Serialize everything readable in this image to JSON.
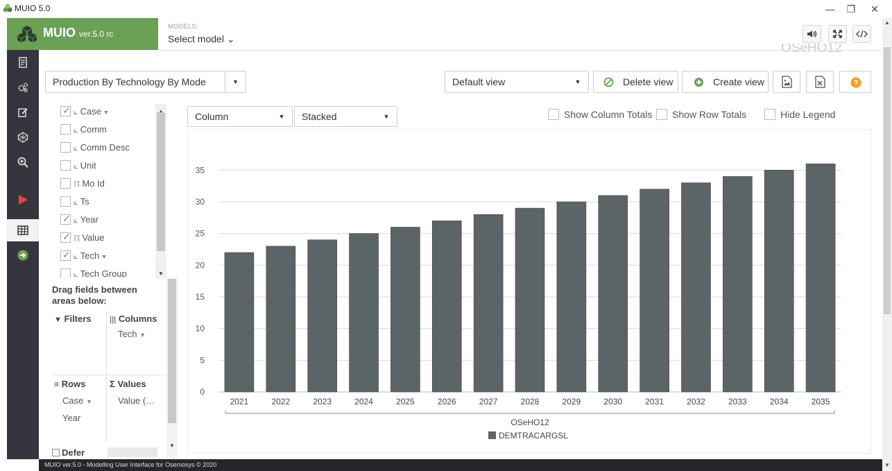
{
  "window": {
    "title": "MUIO 5.0",
    "controls": [
      "—",
      "❐",
      "✕"
    ]
  },
  "brand": {
    "name": "MUIO",
    "version": "ver.5.0 rc"
  },
  "models": {
    "label": "MODELS:",
    "selected": "Select model ⌄"
  },
  "faded_title": "OSeHO12",
  "toolbar": {
    "result_select": "Production By Technology By Mode",
    "view_select": "Default view",
    "delete_view_label": "Delete view",
    "create_view_label": "Create view"
  },
  "fields": [
    {
      "label": "Case",
      "checked": true,
      "glyph": "⟀",
      "filter": true
    },
    {
      "label": "Comm",
      "checked": false,
      "glyph": "⟀",
      "filter": false
    },
    {
      "label": "Comm Desc",
      "checked": false,
      "glyph": "⟀",
      "filter": false
    },
    {
      "label": "Unit",
      "checked": false,
      "glyph": "⟀",
      "filter": false
    },
    {
      "label": "Mo Id",
      "checked": false,
      "glyph": "ℿ",
      "filter": false
    },
    {
      "label": "Ts",
      "checked": false,
      "glyph": "⟀",
      "filter": false
    },
    {
      "label": "Year",
      "checked": true,
      "glyph": "⟀",
      "filter": false
    },
    {
      "label": "Value",
      "checked": true,
      "glyph": "ℿ",
      "filter": false
    },
    {
      "label": "Tech",
      "checked": true,
      "glyph": "⟀",
      "filter": true
    },
    {
      "label": "Tech Group",
      "checked": false,
      "glyph": "⟀",
      "filter": false
    }
  ],
  "pivot": {
    "drag_hint": "Drag fields between areas below:",
    "filters_label": "Filters",
    "columns_label": "Columns",
    "columns_items": [
      "Tech"
    ],
    "rows_label": "Rows",
    "rows_items": [
      "Case",
      "Year"
    ],
    "values_label": "Values",
    "values_items": [
      "Value (…"
    ],
    "defer_label": "Defer"
  },
  "chart_options": {
    "chart_type": "Column",
    "stack_mode": "Stacked",
    "show_column_totals": "Show Column Totals",
    "show_row_totals": "Show Row Totals",
    "hide_legend": "Hide Legend"
  },
  "chart_data": {
    "type": "bar",
    "categories": [
      "2021",
      "2022",
      "2023",
      "2024",
      "2025",
      "2026",
      "2027",
      "2028",
      "2029",
      "2030",
      "2031",
      "2032",
      "2033",
      "2034",
      "2035"
    ],
    "series": [
      {
        "name": "DEMTRACARGSL",
        "values": [
          22,
          23,
          24,
          25,
          26,
          27,
          28,
          29,
          30,
          31,
          32,
          33,
          34,
          35,
          36
        ],
        "color": "#5b6467"
      }
    ],
    "group_label": "OSeHO12",
    "y_ticks": [
      0,
      5,
      10,
      15,
      20,
      25,
      30,
      35
    ],
    "ylim": [
      0,
      37
    ],
    "grid": true,
    "legend_position": "bottom"
  },
  "footer": "MUIO ver.5.0 - Modelling User Interface for Osemosys © 2020",
  "colors": {
    "brand_green": "#6aa154",
    "nav_dark": "#35363d",
    "bar": "#5b6467"
  }
}
